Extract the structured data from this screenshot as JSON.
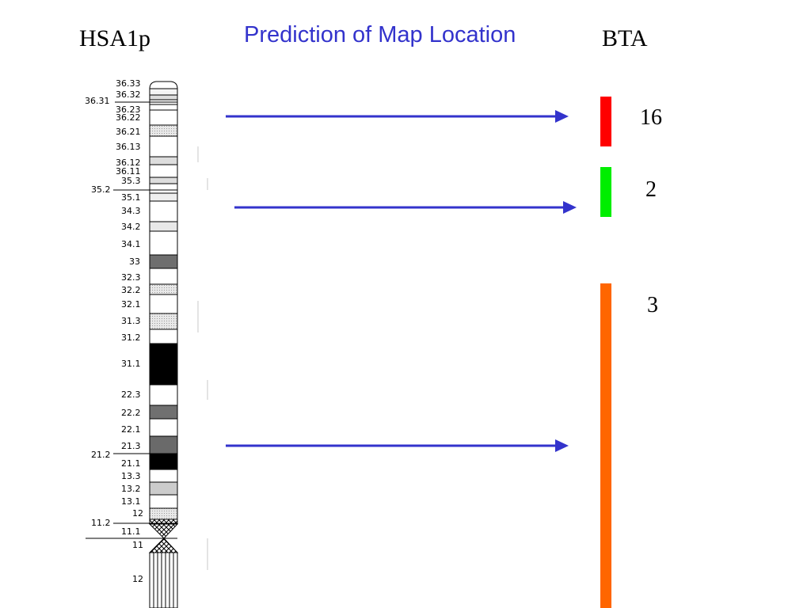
{
  "titles": {
    "left": "HSA1p",
    "center": "Prediction of Map Location",
    "right": "BTA"
  },
  "colors": {
    "arrow": "#3333cc",
    "bta16": "#ff0000",
    "bta2": "#00ee00",
    "bta3": "#ff6600"
  },
  "bta": [
    {
      "label": "16",
      "color": "#ff0000"
    },
    {
      "label": "2",
      "color": "#00ee00"
    },
    {
      "label": "3",
      "color": "#ff6600"
    }
  ],
  "ideogram": {
    "bands": [
      "36.33",
      "36.32",
      "36.23",
      "36.22",
      "36.21",
      "36.13",
      "36.12",
      "36.11",
      "35.3",
      "35.1",
      "34.3",
      "34.2",
      "34.1",
      "33",
      "32.3",
      "32.2",
      "32.1",
      "31.3",
      "31.2",
      "31.1",
      "22.3",
      "22.2",
      "22.1",
      "21.3",
      "21.1",
      "13.3",
      "13.2",
      "13.1",
      "12",
      "11.1",
      "11",
      "12"
    ],
    "side_labels": [
      "36.31",
      "35.2",
      "21.2",
      "11.2"
    ]
  }
}
